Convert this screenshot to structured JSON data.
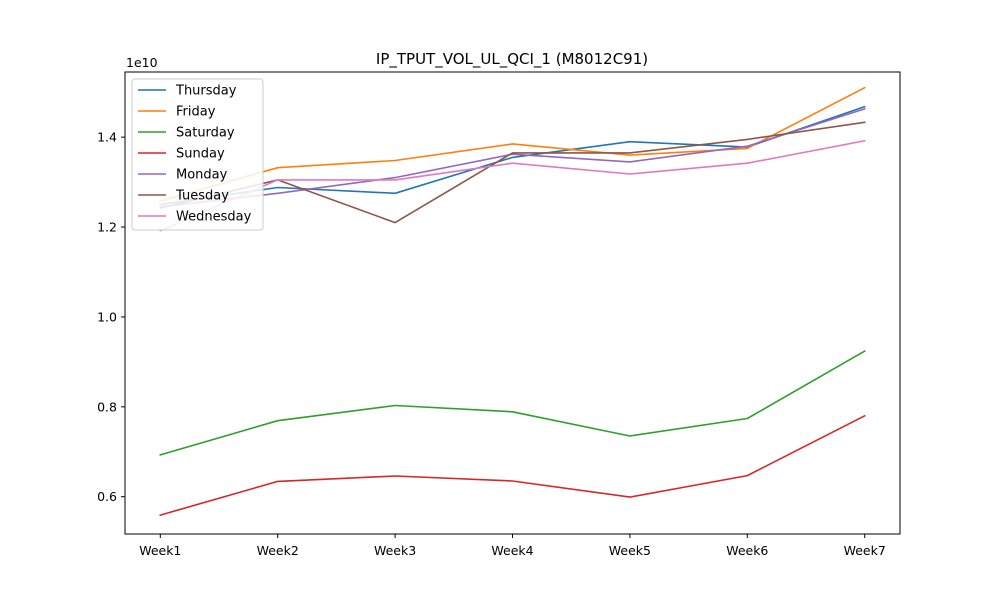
{
  "chart_data": {
    "type": "line",
    "title": "IP_TPUT_VOL_UL_QCI_1 (M8012C91)",
    "xlabel": "",
    "ylabel": "",
    "y_scale_label": "1e10",
    "categories": [
      "Week1",
      "Week2",
      "Week3",
      "Week4",
      "Week5",
      "Week6",
      "Week7"
    ],
    "y_ticks": [
      0.6,
      0.8,
      1.0,
      1.2,
      1.4
    ],
    "ylim": [
      0.517,
      1.545
    ],
    "grid": false,
    "legend_position": "top-left",
    "series": [
      {
        "name": "Thursday",
        "color": "#1f77b4",
        "values": [
          1.25,
          1.288,
          1.275,
          1.355,
          1.39,
          1.378,
          1.468
        ]
      },
      {
        "name": "Friday",
        "color": "#ff7f0e",
        "values": [
          1.258,
          1.332,
          1.348,
          1.385,
          1.36,
          1.375,
          1.51
        ]
      },
      {
        "name": "Saturday",
        "color": "#2ca02c",
        "values": [
          0.693,
          0.769,
          0.803,
          0.789,
          0.735,
          0.774,
          0.924
        ]
      },
      {
        "name": "Sunday",
        "color": "#d62728",
        "values": [
          0.559,
          0.634,
          0.646,
          0.635,
          0.599,
          0.647,
          0.78
        ]
      },
      {
        "name": "Monday",
        "color": "#9467bd",
        "values": [
          1.245,
          1.275,
          1.31,
          1.362,
          1.345,
          1.38,
          1.463
        ]
      },
      {
        "name": "Tuesday",
        "color": "#8c564b",
        "values": [
          1.242,
          1.305,
          1.21,
          1.365,
          1.365,
          1.395,
          1.433
        ]
      },
      {
        "name": "Wednesday",
        "color": "#e377c2",
        "values": [
          1.192,
          1.305,
          1.305,
          1.342,
          1.318,
          1.342,
          1.392
        ]
      }
    ]
  }
}
